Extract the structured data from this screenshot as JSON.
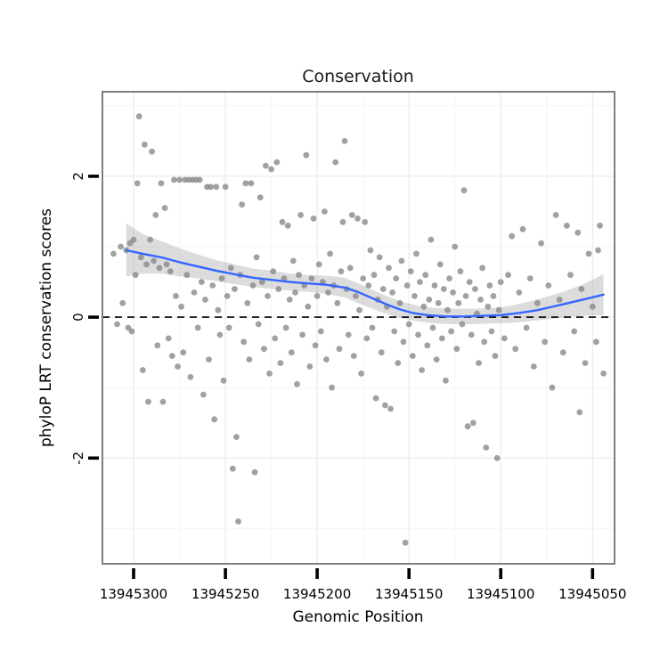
{
  "chart_data": {
    "type": "scatter",
    "title": "Conservation",
    "xlabel": "Genomic Position",
    "ylabel": "phyloP LRT conservation scores",
    "x_axis": {
      "ticks": [
        13945300,
        13945250,
        13945200,
        13945150,
        13945100,
        13945050
      ],
      "minor_ticks": [
        13945275,
        13945225,
        13945175,
        13945125,
        13945075
      ],
      "domain": [
        13945317,
        13945038
      ],
      "reversed": true
    },
    "y_axis": {
      "ticks": [
        -2,
        0,
        2
      ],
      "minor_ticks": [
        -3,
        -1,
        1,
        3
      ],
      "domain": [
        -3.5,
        3.2
      ]
    },
    "reference_line": {
      "y": 0,
      "style": "dashed",
      "color": "#000000"
    },
    "colors": {
      "panel_bg": "#ffffff",
      "grid_major": "#ebebeb",
      "grid_minor": "#f6f6f6",
      "point": "#898989",
      "point_opacity": 0.8,
      "smooth": "#3366ff",
      "ribbon": "#9b9b9b",
      "ribbon_opacity": 0.35,
      "panel_border": "#7f7f7f",
      "tick": "#000000"
    },
    "points": [
      [
        13945311,
        0.9
      ],
      [
        13945309,
        -0.1
      ],
      [
        13945307,
        1.0
      ],
      [
        13945306,
        0.2
      ],
      [
        13945304,
        0.95
      ],
      [
        13945303,
        -0.15
      ],
      [
        13945302,
        1.05
      ],
      [
        13945301,
        -0.2
      ],
      [
        13945300,
        1.1
      ],
      [
        13945299,
        0.6
      ],
      [
        13945298,
        1.9
      ],
      [
        13945297,
        2.85
      ],
      [
        13945296,
        0.85
      ],
      [
        13945295,
        -0.75
      ],
      [
        13945294,
        2.45
      ],
      [
        13945293,
        0.75
      ],
      [
        13945292,
        -1.2
      ],
      [
        13945291,
        1.1
      ],
      [
        13945290,
        2.35
      ],
      [
        13945289,
        0.8
      ],
      [
        13945288,
        1.45
      ],
      [
        13945287,
        -0.4
      ],
      [
        13945286,
        0.7
      ],
      [
        13945285,
        1.9
      ],
      [
        13945284,
        -1.2
      ],
      [
        13945283,
        1.55
      ],
      [
        13945282,
        0.75
      ],
      [
        13945281,
        -0.3
      ],
      [
        13945280,
        0.65
      ],
      [
        13945279,
        -0.55
      ],
      [
        13945278,
        1.95
      ],
      [
        13945277,
        0.3
      ],
      [
        13945276,
        -0.7
      ],
      [
        13945275,
        1.95
      ],
      [
        13945274,
        0.15
      ],
      [
        13945273,
        -0.5
      ],
      [
        13945272,
        1.95
      ],
      [
        13945271,
        0.6
      ],
      [
        13945270,
        1.95
      ],
      [
        13945269,
        -0.85
      ],
      [
        13945268,
        1.95
      ],
      [
        13945267,
        0.35
      ],
      [
        13945266,
        1.95
      ],
      [
        13945265,
        -0.15
      ],
      [
        13945264,
        1.95
      ],
      [
        13945263,
        0.5
      ],
      [
        13945262,
        -1.1
      ],
      [
        13945261,
        0.25
      ],
      [
        13945260,
        1.85
      ],
      [
        13945259,
        -0.6
      ],
      [
        13945258,
        1.85
      ],
      [
        13945257,
        0.45
      ],
      [
        13945256,
        -1.45
      ],
      [
        13945255,
        1.85
      ],
      [
        13945254,
        0.1
      ],
      [
        13945253,
        -0.25
      ],
      [
        13945252,
        0.55
      ],
      [
        13945251,
        -0.9
      ],
      [
        13945250,
        1.85
      ],
      [
        13945249,
        0.3
      ],
      [
        13945248,
        -0.15
      ],
      [
        13945247,
        0.7
      ],
      [
        13945246,
        -2.15
      ],
      [
        13945245,
        0.4
      ],
      [
        13945244,
        -1.7
      ],
      [
        13945243,
        -2.9
      ],
      [
        13945242,
        0.6
      ],
      [
        13945241,
        1.6
      ],
      [
        13945240,
        -0.35
      ],
      [
        13945239,
        1.9
      ],
      [
        13945238,
        0.2
      ],
      [
        13945237,
        -0.6
      ],
      [
        13945236,
        1.9
      ],
      [
        13945235,
        0.45
      ],
      [
        13945234,
        -2.2
      ],
      [
        13945233,
        0.85
      ],
      [
        13945232,
        -0.1
      ],
      [
        13945231,
        1.7
      ],
      [
        13945230,
        0.5
      ],
      [
        13945229,
        -0.45
      ],
      [
        13945228,
        2.15
      ],
      [
        13945227,
        0.3
      ],
      [
        13945226,
        -0.8
      ],
      [
        13945225,
        2.1
      ],
      [
        13945224,
        0.65
      ],
      [
        13945223,
        -0.3
      ],
      [
        13945222,
        2.2
      ],
      [
        13945221,
        0.4
      ],
      [
        13945220,
        -0.65
      ],
      [
        13945219,
        1.35
      ],
      [
        13945218,
        0.55
      ],
      [
        13945217,
        -0.15
      ],
      [
        13945216,
        1.3
      ],
      [
        13945215,
        0.25
      ],
      [
        13945214,
        -0.5
      ],
      [
        13945213,
        0.8
      ],
      [
        13945212,
        0.35
      ],
      [
        13945211,
        -0.95
      ],
      [
        13945210,
        0.6
      ],
      [
        13945209,
        1.45
      ],
      [
        13945208,
        -0.25
      ],
      [
        13945207,
        0.45
      ],
      [
        13945206,
        2.3
      ],
      [
        13945205,
        0.15
      ],
      [
        13945204,
        -0.7
      ],
      [
        13945203,
        0.55
      ],
      [
        13945202,
        1.4
      ],
      [
        13945201,
        -0.4
      ],
      [
        13945200,
        0.3
      ],
      [
        13945199,
        0.75
      ],
      [
        13945198,
        -0.2
      ],
      [
        13945197,
        0.5
      ],
      [
        13945196,
        1.5
      ],
      [
        13945195,
        -0.6
      ],
      [
        13945194,
        0.35
      ],
      [
        13945193,
        0.9
      ],
      [
        13945192,
        -1.0
      ],
      [
        13945191,
        0.45
      ],
      [
        13945190,
        2.2
      ],
      [
        13945189,
        0.2
      ],
      [
        13945188,
        -0.45
      ],
      [
        13945187,
        0.65
      ],
      [
        13945186,
        1.35
      ],
      [
        13945185,
        2.5
      ],
      [
        13945184,
        0.4
      ],
      [
        13945183,
        -0.25
      ],
      [
        13945182,
        0.7
      ],
      [
        13945181,
        1.45
      ],
      [
        13945180,
        -0.55
      ],
      [
        13945179,
        0.3
      ],
      [
        13945178,
        1.4
      ],
      [
        13945177,
        0.1
      ],
      [
        13945176,
        -0.8
      ],
      [
        13945175,
        0.55
      ],
      [
        13945174,
        1.35
      ],
      [
        13945173,
        -0.3
      ],
      [
        13945172,
        0.45
      ],
      [
        13945171,
        0.95
      ],
      [
        13945170,
        -0.15
      ],
      [
        13945169,
        0.6
      ],
      [
        13945168,
        -1.15
      ],
      [
        13945167,
        0.25
      ],
      [
        13945166,
        0.85
      ],
      [
        13945165,
        -0.5
      ],
      [
        13945164,
        0.4
      ],
      [
        13945163,
        -1.25
      ],
      [
        13945162,
        0.15
      ],
      [
        13945161,
        0.7
      ],
      [
        13945160,
        -1.3
      ],
      [
        13945159,
        0.35
      ],
      [
        13945158,
        -0.2
      ],
      [
        13945157,
        0.55
      ],
      [
        13945156,
        -0.65
      ],
      [
        13945155,
        0.2
      ],
      [
        13945154,
        0.8
      ],
      [
        13945153,
        -0.35
      ],
      [
        13945152,
        -3.2
      ],
      [
        13945151,
        0.45
      ],
      [
        13945150,
        -0.1
      ],
      [
        13945149,
        0.65
      ],
      [
        13945148,
        -0.55
      ],
      [
        13945147,
        0.3
      ],
      [
        13945146,
        0.9
      ],
      [
        13945145,
        -0.25
      ],
      [
        13945144,
        0.5
      ],
      [
        13945143,
        -0.75
      ],
      [
        13945142,
        0.15
      ],
      [
        13945141,
        0.6
      ],
      [
        13945140,
        -0.4
      ],
      [
        13945139,
        0.25
      ],
      [
        13945138,
        1.1
      ],
      [
        13945137,
        -0.15
      ],
      [
        13945136,
        0.45
      ],
      [
        13945135,
        -0.6
      ],
      [
        13945134,
        0.2
      ],
      [
        13945133,
        0.75
      ],
      [
        13945132,
        -0.3
      ],
      [
        13945131,
        0.4
      ],
      [
        13945130,
        -0.9
      ],
      [
        13945129,
        0.1
      ],
      [
        13945128,
        0.55
      ],
      [
        13945127,
        -0.2
      ],
      [
        13945126,
        0.35
      ],
      [
        13945125,
        1.0
      ],
      [
        13945124,
        -0.45
      ],
      [
        13945123,
        0.2
      ],
      [
        13945122,
        0.65
      ],
      [
        13945121,
        -0.1
      ],
      [
        13945120,
        1.8
      ],
      [
        13945119,
        0.3
      ],
      [
        13945118,
        -1.55
      ],
      [
        13945117,
        0.5
      ],
      [
        13945116,
        -0.25
      ],
      [
        13945115,
        -1.5
      ],
      [
        13945114,
        0.4
      ],
      [
        13945113,
        0.05
      ],
      [
        13945112,
        -0.65
      ],
      [
        13945111,
        0.25
      ],
      [
        13945110,
        0.7
      ],
      [
        13945109,
        -0.35
      ],
      [
        13945108,
        -1.85
      ],
      [
        13945107,
        0.15
      ],
      [
        13945106,
        0.45
      ],
      [
        13945105,
        -0.2
      ],
      [
        13945104,
        0.3
      ],
      [
        13945103,
        -0.55
      ],
      [
        13945102,
        -2.0
      ],
      [
        13945101,
        0.1
      ],
      [
        13945100,
        0.5
      ],
      [
        13945098,
        -0.3
      ],
      [
        13945096,
        0.6
      ],
      [
        13945094,
        1.15
      ],
      [
        13945092,
        -0.45
      ],
      [
        13945090,
        0.35
      ],
      [
        13945088,
        1.25
      ],
      [
        13945086,
        -0.15
      ],
      [
        13945084,
        0.55
      ],
      [
        13945082,
        -0.7
      ],
      [
        13945080,
        0.2
      ],
      [
        13945078,
        1.05
      ],
      [
        13945076,
        -0.35
      ],
      [
        13945074,
        0.45
      ],
      [
        13945072,
        -1.0
      ],
      [
        13945070,
        1.45
      ],
      [
        13945068,
        0.25
      ],
      [
        13945066,
        -0.5
      ],
      [
        13945064,
        1.3
      ],
      [
        13945062,
        0.6
      ],
      [
        13945060,
        -0.2
      ],
      [
        13945058,
        1.2
      ],
      [
        13945057,
        -1.35
      ],
      [
        13945056,
        0.4
      ],
      [
        13945054,
        -0.65
      ],
      [
        13945052,
        0.9
      ],
      [
        13945050,
        0.15
      ],
      [
        13945048,
        -0.35
      ],
      [
        13945047,
        0.95
      ],
      [
        13945046,
        1.3
      ],
      [
        13945044,
        -0.8
      ]
    ],
    "smooth": {
      "line": [
        [
          13945304,
          0.95
        ],
        [
          13945295,
          0.9
        ],
        [
          13945285,
          0.85
        ],
        [
          13945275,
          0.78
        ],
        [
          13945265,
          0.72
        ],
        [
          13945255,
          0.66
        ],
        [
          13945245,
          0.61
        ],
        [
          13945235,
          0.56
        ],
        [
          13945225,
          0.53
        ],
        [
          13945215,
          0.5
        ],
        [
          13945205,
          0.48
        ],
        [
          13945195,
          0.46
        ],
        [
          13945185,
          0.42
        ],
        [
          13945178,
          0.36
        ],
        [
          13945170,
          0.27
        ],
        [
          13945162,
          0.18
        ],
        [
          13945155,
          0.11
        ],
        [
          13945148,
          0.06
        ],
        [
          13945140,
          0.03
        ],
        [
          13945130,
          0.01
        ],
        [
          13945120,
          0.01
        ],
        [
          13945110,
          0.02
        ],
        [
          13945100,
          0.03
        ],
        [
          13945090,
          0.06
        ],
        [
          13945080,
          0.1
        ],
        [
          13945070,
          0.16
        ],
        [
          13945060,
          0.22
        ],
        [
          13945052,
          0.27
        ],
        [
          13945044,
          0.32
        ]
      ]
    },
    "ribbon": [
      [
        13945304,
        0.58,
        1.33
      ],
      [
        13945295,
        0.62,
        1.18
      ],
      [
        13945285,
        0.62,
        1.08
      ],
      [
        13945275,
        0.58,
        0.98
      ],
      [
        13945265,
        0.55,
        0.89
      ],
      [
        13945255,
        0.51,
        0.81
      ],
      [
        13945245,
        0.47,
        0.75
      ],
      [
        13945235,
        0.43,
        0.69
      ],
      [
        13945225,
        0.4,
        0.66
      ],
      [
        13945215,
        0.38,
        0.62
      ],
      [
        13945205,
        0.36,
        0.6
      ],
      [
        13945195,
        0.33,
        0.59
      ],
      [
        13945185,
        0.28,
        0.56
      ],
      [
        13945175,
        0.17,
        0.45
      ],
      [
        13945165,
        0.07,
        0.33
      ],
      [
        13945155,
        -0.01,
        0.23
      ],
      [
        13945145,
        -0.06,
        0.16
      ],
      [
        13945135,
        -0.09,
        0.13
      ],
      [
        13945125,
        -0.1,
        0.12
      ],
      [
        13945115,
        -0.1,
        0.12
      ],
      [
        13945105,
        -0.09,
        0.13
      ],
      [
        13945095,
        -0.08,
        0.16
      ],
      [
        13945085,
        -0.06,
        0.22
      ],
      [
        13945075,
        -0.03,
        0.29
      ],
      [
        13945065,
        0.0,
        0.37
      ],
      [
        13945055,
        0.02,
        0.47
      ],
      [
        13945044,
        0.03,
        0.61
      ]
    ]
  }
}
